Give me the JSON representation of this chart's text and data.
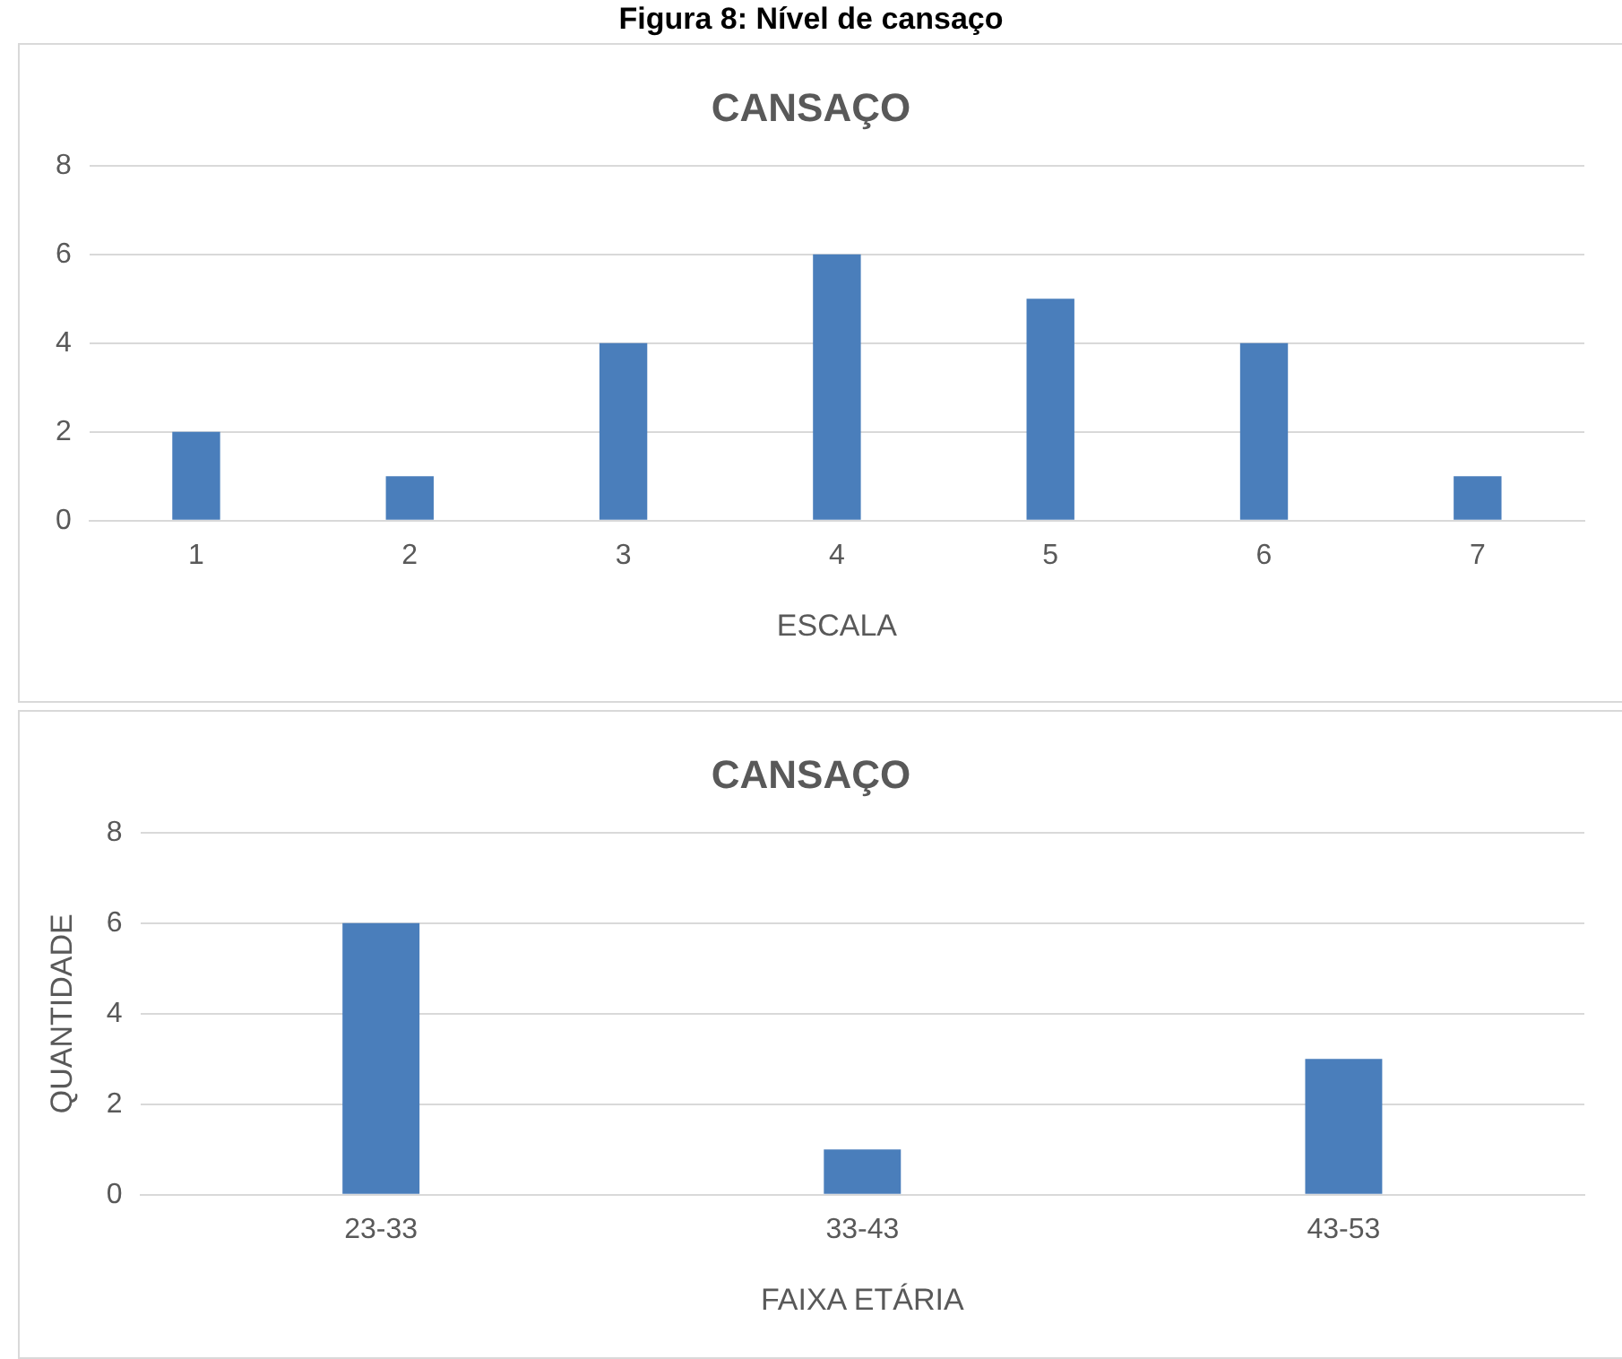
{
  "chart_data": [
    {
      "type": "bar",
      "title": "CANSAÇO",
      "annotations": [
        "Figura 8: Nível de cansaço"
      ],
      "xlabel": "ESCALA",
      "categories": [
        "1",
        "2",
        "3",
        "4",
        "5",
        "6",
        "7"
      ],
      "values": [
        2,
        1,
        4,
        6,
        5,
        4,
        1
      ],
      "color": "#4a7ebb",
      "ylim": [
        0,
        8
      ],
      "yticks": [
        0,
        2,
        4,
        6,
        8
      ],
      "grid": "y",
      "legend": false
    },
    {
      "type": "bar",
      "title": "CANSAÇO",
      "xlabel": "FAIXA ETÁRIA",
      "ylabel": "QUANTIDADE",
      "categories": [
        "23-33",
        "33-43",
        "43-53"
      ],
      "values": [
        6,
        1,
        3
      ],
      "color": "#4a7ebb",
      "ylim": [
        0,
        8
      ],
      "yticks": [
        0,
        2,
        4,
        6,
        8
      ],
      "grid": "y",
      "legend": false
    }
  ]
}
